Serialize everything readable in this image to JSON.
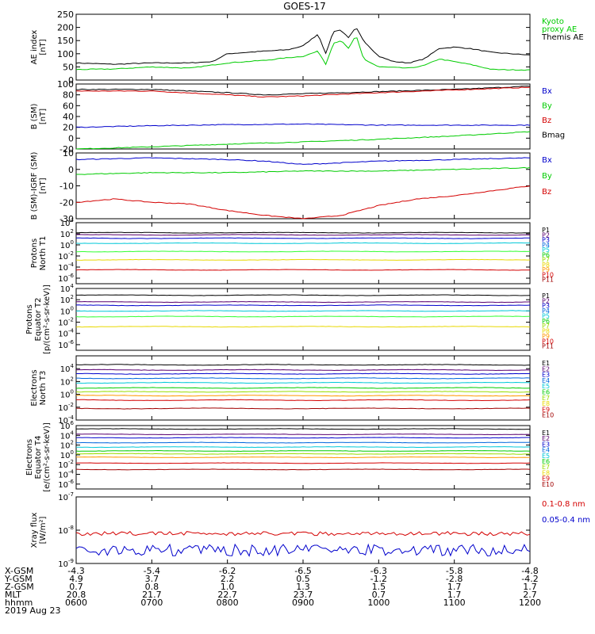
{
  "title": "GOES-17",
  "colors": {
    "black": "#000000",
    "red": "#d40000",
    "green": "#00cc00",
    "blue": "#0000cc",
    "yellow": "#e8d800",
    "orange": "#ff9900",
    "cyan": "#00c8d8",
    "lightgreen": "#44dd44",
    "purple": "#5a0070",
    "navy": "#00007a",
    "darkred": "#a00000",
    "brightgreen": "#33ff33"
  },
  "time_axis": {
    "ticks": [
      "0600",
      "0700",
      "0800",
      "0900",
      "1000",
      "1100",
      "1200"
    ],
    "date": "2019 Aug 23",
    "rows": [
      {
        "label": "X-GSM",
        "values": [
          "-4.3",
          "-5.4",
          "-6.2",
          "-6.5",
          "-6.3",
          "-5.8",
          "-4.8"
        ]
      },
      {
        "label": "Y-GSM",
        "values": [
          "4.9",
          "3.7",
          "2.2",
          "0.5",
          "-1.2",
          "-2.8",
          "-4.2"
        ]
      },
      {
        "label": "Z-GSM",
        "values": [
          "0.7",
          "0.8",
          "1.0",
          "1.3",
          "1.5",
          "1.7",
          "1.7"
        ]
      },
      {
        "label": "MLT",
        "values": [
          "20.8",
          "21.7",
          "22.7",
          "23.7",
          "0.7",
          "1.7",
          "2.7"
        ]
      },
      {
        "label": "hhmm",
        "values": [
          "0600",
          "0700",
          "0800",
          "0900",
          "1000",
          "1100",
          "1200"
        ]
      }
    ]
  },
  "chart_data": [
    {
      "type": "line",
      "ylabel": [
        "AE index",
        "[nT]"
      ],
      "ylim": [
        0,
        250
      ],
      "yticks": [
        "0",
        "50",
        "100",
        "150",
        "200",
        "250"
      ],
      "legend": [
        {
          "name": "Kyoto\nproxy AE",
          "color": "#00cc00"
        },
        {
          "name": "Themis AE",
          "color": "#000000"
        }
      ],
      "series": [
        {
          "name": "Themis AE",
          "color": "#000000",
          "x": [
            6.0,
            6.5,
            7.0,
            7.5,
            7.8,
            8.0,
            8.5,
            8.8,
            9.0,
            9.2,
            9.3,
            9.4,
            9.5,
            9.6,
            9.7,
            9.8,
            10.0,
            10.2,
            10.4,
            10.6,
            10.8,
            11.0,
            11.2,
            11.5,
            12.0
          ],
          "values": [
            65,
            60,
            65,
            65,
            70,
            100,
            110,
            115,
            130,
            175,
            100,
            185,
            190,
            160,
            200,
            150,
            90,
            70,
            65,
            80,
            120,
            125,
            120,
            105,
            95
          ]
        },
        {
          "name": "Kyoto proxy AE",
          "color": "#00cc00",
          "x": [
            6.0,
            6.5,
            7.0,
            7.5,
            8.0,
            8.5,
            8.8,
            9.0,
            9.2,
            9.3,
            9.4,
            9.5,
            9.6,
            9.7,
            9.8,
            10.0,
            10.2,
            10.4,
            10.6,
            10.8,
            11.0,
            11.2,
            11.5,
            12.0
          ],
          "values": [
            40,
            42,
            50,
            45,
            65,
            75,
            85,
            90,
            110,
            60,
            140,
            150,
            120,
            170,
            80,
            50,
            48,
            45,
            55,
            80,
            70,
            60,
            40,
            38
          ]
        }
      ]
    },
    {
      "type": "line",
      "ylabel": [
        "B (SM)",
        "[nT]"
      ],
      "ylim": [
        -20,
        100
      ],
      "yticks": [
        "-20",
        "0",
        "20",
        "40",
        "60",
        "80",
        "100"
      ],
      "legend": [
        {
          "name": "Bx",
          "color": "#0000cc"
        },
        {
          "name": "By",
          "color": "#00cc00"
        },
        {
          "name": "Bz",
          "color": "#d40000"
        },
        {
          "name": "Bmag",
          "color": "#000000"
        }
      ],
      "series": [
        {
          "name": "Bmag",
          "color": "#000000",
          "x": [
            6,
            7,
            8,
            8.5,
            9,
            10,
            11,
            12
          ],
          "values": [
            90,
            90,
            84,
            80,
            82,
            86,
            90,
            96
          ]
        },
        {
          "name": "Bz",
          "color": "#d40000",
          "x": [
            6,
            7,
            8,
            8.5,
            9,
            10,
            11,
            12
          ],
          "values": [
            87,
            87,
            80,
            76,
            78,
            84,
            89,
            94
          ]
        },
        {
          "name": "Bx",
          "color": "#0000cc",
          "x": [
            6,
            7,
            8,
            9,
            10,
            11,
            12
          ],
          "values": [
            20,
            23,
            25,
            26,
            24,
            24,
            24
          ]
        },
        {
          "name": "By",
          "color": "#00cc00",
          "x": [
            6,
            7,
            8,
            9,
            10,
            11,
            12
          ],
          "values": [
            -20,
            -16,
            -11,
            -7,
            -2,
            4,
            12
          ]
        }
      ]
    },
    {
      "type": "line",
      "ylabel": [
        "B (SM)-IGRF (SM)",
        "[nT]"
      ],
      "ylim": [
        -30,
        10
      ],
      "yticks": [
        "-30",
        "-20",
        "-10",
        "0",
        "10"
      ],
      "legend": [
        {
          "name": "Bx",
          "color": "#0000cc"
        },
        {
          "name": "By",
          "color": "#00cc00"
        },
        {
          "name": "Bz",
          "color": "#d40000"
        }
      ],
      "series": [
        {
          "name": "Bx",
          "color": "#0000cc",
          "x": [
            6,
            7,
            8,
            8.5,
            9,
            9.5,
            10,
            11,
            12
          ],
          "values": [
            6,
            7,
            6,
            5,
            3,
            4,
            5,
            6,
            7
          ]
        },
        {
          "name": "By",
          "color": "#00cc00",
          "x": [
            6,
            7,
            8,
            9,
            10,
            11,
            12
          ],
          "values": [
            -3,
            -2,
            -2,
            -1,
            -1,
            0,
            1
          ]
        },
        {
          "name": "Bz",
          "color": "#d40000",
          "x": [
            6,
            6.5,
            7,
            7.5,
            8,
            8.5,
            9,
            9.5,
            10,
            10.5,
            11,
            11.5,
            12
          ],
          "values": [
            -20,
            -18,
            -20,
            -21,
            -25,
            -28,
            -30,
            -28,
            -22,
            -18,
            -16,
            -13,
            -10
          ]
        }
      ]
    },
    {
      "type": "line",
      "log": true,
      "ylabel": [
        "Protons",
        "North T1"
      ],
      "ylim_exp": [
        -7,
        4
      ],
      "yticks_exp": [
        4,
        2,
        0,
        -2,
        -4,
        -6
      ],
      "legend": [
        {
          "name": "P1",
          "color": "#000000"
        },
        {
          "name": "P2",
          "color": "#5a0070"
        },
        {
          "name": "P3",
          "color": "#0000cc"
        },
        {
          "name": "P4",
          "color": "#0066dd"
        },
        {
          "name": "P5",
          "color": "#00c8d8"
        },
        {
          "name": "P6",
          "color": "#00cc00"
        },
        {
          "name": "P7",
          "color": "#99dd00"
        },
        {
          "name": "P8",
          "color": "#e8d800"
        },
        {
          "name": "P9",
          "color": "#ff9900"
        },
        {
          "name": "P10",
          "color": "#d40000"
        },
        {
          "name": "P11",
          "color": "#a00000"
        }
      ],
      "series": [
        {
          "name": "P1",
          "color": "#000000",
          "values_exp": 2.2
        },
        {
          "name": "P2",
          "color": "#5a0070",
          "values_exp": 1.8
        },
        {
          "name": "P3",
          "color": "#0000cc",
          "values_exp": 1.2
        },
        {
          "name": "P4",
          "color": "#00c8d8",
          "values_exp": 0.3
        },
        {
          "name": "P5",
          "color": "#33ff33",
          "values_exp": -1.2
        },
        {
          "name": "P8",
          "color": "#e8d800",
          "values_exp": -2.7
        },
        {
          "name": "P10",
          "color": "#d40000",
          "values_exp": -4.5
        }
      ]
    },
    {
      "type": "line",
      "log": true,
      "ylabel": [
        "Protons",
        "Equator T2",
        "[p/(cm²-s-sr-keV)]"
      ],
      "ylim_exp": [
        -7,
        4
      ],
      "yticks_exp": [
        4,
        2,
        0,
        -2,
        -4,
        -6
      ],
      "legend": [
        {
          "name": "P1",
          "color": "#000000"
        },
        {
          "name": "P2",
          "color": "#5a0070"
        },
        {
          "name": "P3",
          "color": "#0000cc"
        },
        {
          "name": "P4",
          "color": "#0066dd"
        },
        {
          "name": "P5",
          "color": "#00c8d8"
        },
        {
          "name": "P6",
          "color": "#00cc00"
        },
        {
          "name": "P7",
          "color": "#99dd00"
        },
        {
          "name": "P8",
          "color": "#e8d800"
        },
        {
          "name": "P9",
          "color": "#ff9900"
        },
        {
          "name": "P10",
          "color": "#d40000"
        },
        {
          "name": "P11",
          "color": "#a00000"
        }
      ],
      "series": [
        {
          "name": "P1",
          "color": "#000000",
          "values_exp": 2.8
        },
        {
          "name": "P2",
          "color": "#5a0070",
          "values_exp": 1.6
        },
        {
          "name": "P3",
          "color": "#0000cc",
          "values_exp": 1.0
        },
        {
          "name": "P4",
          "color": "#00c8d8",
          "values_exp": 0.0
        },
        {
          "name": "P5",
          "color": "#33ff33",
          "values_exp": -1.0
        },
        {
          "name": "P8",
          "color": "#e8d800",
          "values_exp": -2.8
        }
      ]
    },
    {
      "type": "line",
      "log": true,
      "ylabel": [
        "Electrons",
        "North T3"
      ],
      "ylim_exp": [
        -4,
        6
      ],
      "yticks_exp": [
        4,
        2,
        0,
        -2,
        -4
      ],
      "legend": [
        {
          "name": "E1",
          "color": "#000000"
        },
        {
          "name": "E2",
          "color": "#5a0070"
        },
        {
          "name": "E3",
          "color": "#0000cc"
        },
        {
          "name": "E4",
          "color": "#0066dd"
        },
        {
          "name": "E5",
          "color": "#00c8d8"
        },
        {
          "name": "E6",
          "color": "#00cc00"
        },
        {
          "name": "E7",
          "color": "#99dd00"
        },
        {
          "name": "E8",
          "color": "#e8d800"
        },
        {
          "name": "E9",
          "color": "#d40000"
        },
        {
          "name": "E10",
          "color": "#a00000"
        }
      ],
      "series": [
        {
          "name": "E1",
          "color": "#000000",
          "values_exp": 4.6
        },
        {
          "name": "E2",
          "color": "#5a0070",
          "values_exp": 3.8
        },
        {
          "name": "E3",
          "color": "#0000cc",
          "values_exp": 3.2
        },
        {
          "name": "E4",
          "color": "#0066dd",
          "values_exp": 2.5
        },
        {
          "name": "E5",
          "color": "#00c8d8",
          "values_exp": 1.8
        },
        {
          "name": "E6",
          "color": "#00cc00",
          "values_exp": 1.0
        },
        {
          "name": "E7",
          "color": "#99dd00",
          "values_exp": 0.4
        },
        {
          "name": "E8",
          "color": "#ff9900",
          "values_exp": -0.2
        },
        {
          "name": "E9",
          "color": "#d40000",
          "values_exp": -0.9
        },
        {
          "name": "E10",
          "color": "#a00000",
          "values_exp": -2.2
        }
      ]
    },
    {
      "type": "line",
      "log": true,
      "ylabel": [
        "Electrons",
        "Equator T4",
        "[e/(cm²-s-sr-keV)]"
      ],
      "ylim_exp": [
        -7,
        6
      ],
      "yticks_exp": [
        6,
        4,
        2,
        0,
        -2,
        -4,
        -6
      ],
      "legend": [
        {
          "name": "E1",
          "color": "#000000"
        },
        {
          "name": "E2",
          "color": "#5a0070"
        },
        {
          "name": "E3",
          "color": "#0000cc"
        },
        {
          "name": "E4",
          "color": "#0066dd"
        },
        {
          "name": "E5",
          "color": "#00c8d8"
        },
        {
          "name": "E6",
          "color": "#00cc00"
        },
        {
          "name": "E7",
          "color": "#99dd00"
        },
        {
          "name": "E8",
          "color": "#e8d800"
        },
        {
          "name": "E9",
          "color": "#d40000"
        },
        {
          "name": "E10",
          "color": "#a00000"
        }
      ],
      "series": [
        {
          "name": "E1",
          "color": "#000000",
          "values_exp": 5.3
        },
        {
          "name": "E2",
          "color": "#5a0070",
          "values_exp": 4.2
        },
        {
          "name": "E3",
          "color": "#0000cc",
          "values_exp": 3.5
        },
        {
          "name": "E4",
          "color": "#0066dd",
          "values_exp": 2.5
        },
        {
          "name": "E5",
          "color": "#00c8d8",
          "values_exp": 1.6
        },
        {
          "name": "E6",
          "color": "#00cc00",
          "values_exp": 0.8
        },
        {
          "name": "E7",
          "color": "#99dd00",
          "values_exp": 0.2
        },
        {
          "name": "E8",
          "color": "#ff9900",
          "values_exp": -0.5
        },
        {
          "name": "E9",
          "color": "#d40000",
          "values_exp": -1.7
        },
        {
          "name": "E10",
          "color": "#a00000",
          "values_exp": -3.0
        }
      ]
    },
    {
      "type": "line",
      "log": true,
      "ylabel": [
        "Xray flux",
        "[W/m²]"
      ],
      "ylim_exp": [
        -9,
        -7
      ],
      "yticks_exp": [
        -7,
        -8,
        -9
      ],
      "legend": [
        {
          "name": "0.1-0.8 nm",
          "color": "#d40000"
        },
        {
          "name": "0.05-0.4 nm",
          "color": "#0000cc"
        }
      ],
      "series": [
        {
          "name": "0.1-0.8 nm",
          "color": "#d40000",
          "values_exp": -8.1
        },
        {
          "name": "0.05-0.4 nm",
          "color": "#0000cc",
          "values_exp": -8.6
        }
      ]
    }
  ]
}
